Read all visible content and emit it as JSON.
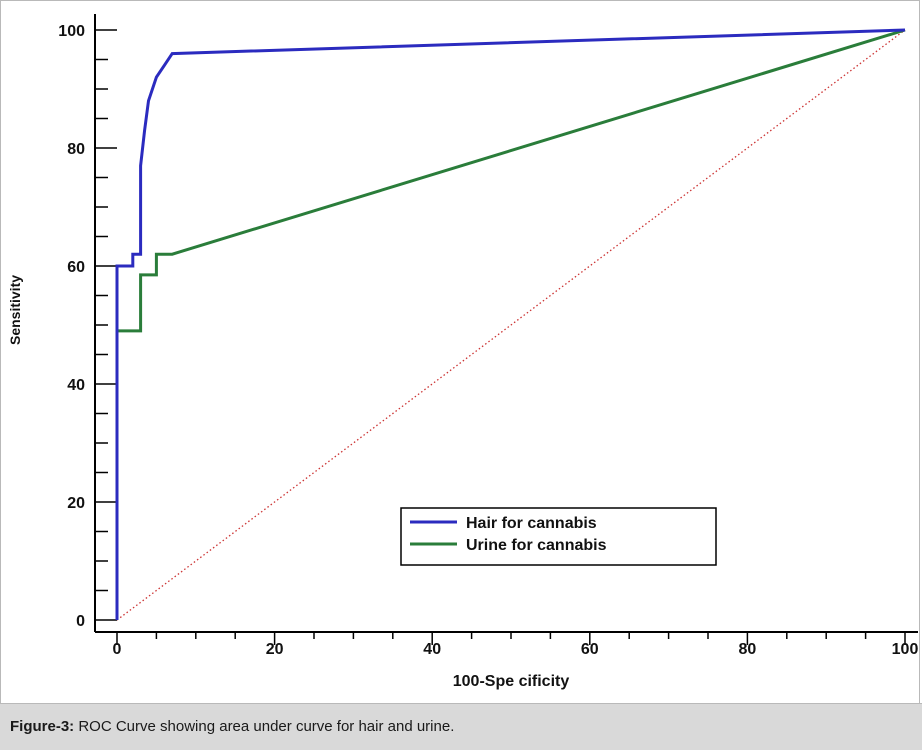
{
  "chart_data": {
    "type": "line",
    "xlabel": "100-Spe cificity",
    "ylabel": "Sensitivity",
    "xlim": [
      0,
      100
    ],
    "ylim": [
      0,
      100
    ],
    "xticks": [
      0,
      20,
      40,
      60,
      80,
      100
    ],
    "yticks": [
      0,
      20,
      40,
      60,
      80,
      100
    ],
    "xtick_labels": [
      "0",
      "20",
      "40",
      "60",
      "80",
      "100"
    ],
    "ytick_labels": [
      "0",
      "20",
      "40",
      "60",
      "80",
      "100"
    ],
    "legend_position": "bottom-right",
    "series": [
      {
        "name": "Hair for cannabis",
        "color": "#2b2bbf",
        "x": [
          0,
          0,
          2,
          2,
          3,
          3,
          3.5,
          4,
          5,
          6,
          7,
          100
        ],
        "y": [
          0,
          60,
          60,
          62,
          62,
          77,
          83,
          88,
          92,
          94,
          96,
          100
        ]
      },
      {
        "name": "Urine for cannabis",
        "color": "#2a7d3a",
        "x": [
          0,
          0,
          3,
          3,
          5,
          5,
          7,
          100
        ],
        "y": [
          0,
          49,
          49,
          58.5,
          58.5,
          62,
          62,
          100
        ]
      },
      {
        "name": "",
        "color": "#cc3333",
        "style": "dotted",
        "x": [
          0,
          100
        ],
        "y": [
          0,
          100
        ]
      }
    ]
  },
  "caption": {
    "label": "Figure-3:",
    "text": " ROC Curve showing area under curve for hair and urine."
  }
}
